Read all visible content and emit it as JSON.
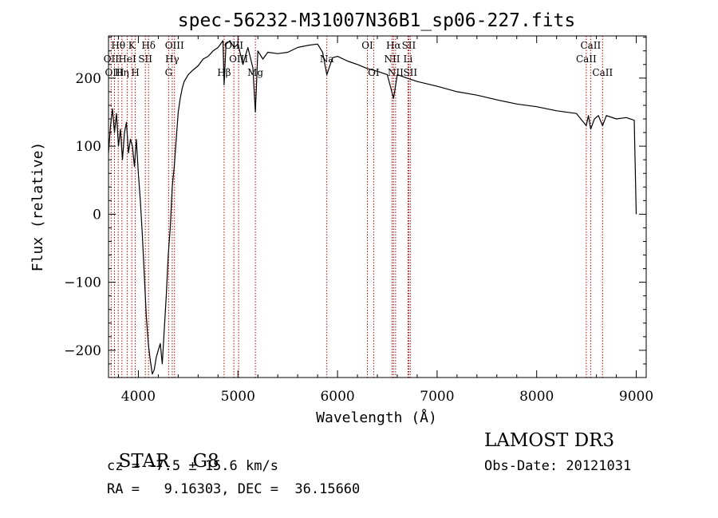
{
  "chart_data": {
    "type": "line",
    "title": "spec-56232-M31007N36B1_sp06-227.fits",
    "xlabel": "Wavelength (Å)",
    "ylabel": "Flux (relative)",
    "xlim": [
      3700,
      9100
    ],
    "ylim": [
      -240,
      262
    ],
    "xticks": [
      4000,
      5000,
      6000,
      7000,
      8000,
      9000
    ],
    "xtick_labels": [
      "4000",
      "5000",
      "6000",
      "7000",
      "8000",
      "9000"
    ],
    "yticks": [
      -200,
      -100,
      0,
      100,
      200
    ],
    "ytick_labels": [
      "−200",
      "−100",
      "0",
      "100",
      "200"
    ],
    "series": [
      {
        "name": "spectrum",
        "color": "#000000",
        "x": [
          3700,
          3720,
          3740,
          3760,
          3780,
          3800,
          3820,
          3840,
          3860,
          3880,
          3900,
          3920,
          3940,
          3960,
          3980,
          4000,
          4020,
          4040,
          4060,
          4080,
          4100,
          4120,
          4140,
          4160,
          4180,
          4200,
          4220,
          4240,
          4260,
          4280,
          4300,
          4320,
          4340,
          4360,
          4380,
          4400,
          4420,
          4440,
          4460,
          4480,
          4500,
          4550,
          4600,
          4650,
          4700,
          4750,
          4800,
          4850,
          4861,
          4880,
          4920,
          4960,
          5000,
          5050,
          5100,
          5150,
          5175,
          5200,
          5250,
          5300,
          5400,
          5500,
          5600,
          5700,
          5800,
          5850,
          5893,
          5950,
          6000,
          6100,
          6200,
          6300,
          6400,
          6500,
          6563,
          6600,
          6700,
          6800,
          7000,
          7200,
          7400,
          7600,
          7800,
          8000,
          8200,
          8400,
          8498,
          8520,
          8542,
          8580,
          8620,
          8662,
          8700,
          8800,
          8900,
          8980,
          9000
        ],
        "y": [
          90,
          130,
          155,
          120,
          148,
          100,
          125,
          80,
          120,
          135,
          90,
          110,
          100,
          70,
          110,
          60,
          20,
          -30,
          -90,
          -150,
          -190,
          -215,
          -235,
          -228,
          -210,
          -200,
          -190,
          -220,
          -170,
          -120,
          -60,
          -20,
          40,
          70,
          110,
          150,
          170,
          185,
          195,
          200,
          205,
          212,
          218,
          228,
          232,
          240,
          245,
          255,
          190,
          250,
          255,
          245,
          250,
          220,
          245,
          215,
          150,
          240,
          228,
          238,
          236,
          238,
          245,
          248,
          250,
          238,
          205,
          230,
          232,
          225,
          220,
          214,
          210,
          205,
          170,
          205,
          200,
          195,
          188,
          180,
          175,
          168,
          162,
          158,
          152,
          148,
          130,
          145,
          125,
          140,
          145,
          130,
          145,
          140,
          142,
          138,
          0
        ]
      }
    ],
    "line_markers": [
      {
        "label": "Hθ",
        "wavelength": 3798,
        "row": 0
      },
      {
        "label": "OII",
        "wavelength": 3727,
        "row": 1
      },
      {
        "label": "OIII",
        "wavelength": 3760,
        "row": 2
      },
      {
        "label": "Hη",
        "wavelength": 3835,
        "row": 2
      },
      {
        "label": "HeI",
        "wavelength": 3889,
        "row": 1
      },
      {
        "label": "K",
        "wavelength": 3934,
        "row": 0
      },
      {
        "label": "H",
        "wavelength": 3969,
        "row": 2
      },
      {
        "label": "SII",
        "wavelength": 4070,
        "row": 1
      },
      {
        "label": "Hδ",
        "wavelength": 4102,
        "row": 0
      },
      {
        "label": "OIII",
        "wavelength": 4363,
        "row": 0
      },
      {
        "label": "Hγ",
        "wavelength": 4340,
        "row": 1
      },
      {
        "label": "G",
        "wavelength": 4304,
        "row": 2
      },
      {
        "label": "Hβ",
        "wavelength": 4861,
        "row": 2
      },
      {
        "label": "OIII",
        "wavelength": 4959,
        "row": 0
      },
      {
        "label": "OIII",
        "wavelength": 5007,
        "row": 1
      },
      {
        "label": "Mg",
        "wavelength": 5175,
        "row": 2
      },
      {
        "label": "Na",
        "wavelength": 5893,
        "row": 1
      },
      {
        "label": "OI",
        "wavelength": 6300,
        "row": 0
      },
      {
        "label": "OI",
        "wavelength": 6363,
        "row": 2
      },
      {
        "label": "Hα",
        "wavelength": 6563,
        "row": 0
      },
      {
        "label": "NII",
        "wavelength": 6548,
        "row": 1
      },
      {
        "label": "NII",
        "wavelength": 6583,
        "row": 2
      },
      {
        "label": "SII",
        "wavelength": 6716,
        "row": 0
      },
      {
        "label": "Li",
        "wavelength": 6708,
        "row": 1
      },
      {
        "label": "SII",
        "wavelength": 6731,
        "row": 2
      },
      {
        "label": "CaII",
        "wavelength": 8542,
        "row": 0
      },
      {
        "label": "CaII",
        "wavelength": 8498,
        "row": 1
      },
      {
        "label": "CaII",
        "wavelength": 8662,
        "row": 2
      }
    ]
  },
  "info": {
    "class": "STAR",
    "subclass": "G8",
    "survey": "LAMOST DR3",
    "redshift_line": "cz = −7.5 ± 15.6 km/s",
    "obs_date_line": "Obs-Date: 20121031",
    "coords_line": "RA =   9.16303, DEC =  36.15660"
  },
  "colors": {
    "marker_line": "#c00000",
    "spectrum": "#000000",
    "axes": "#000000"
  }
}
